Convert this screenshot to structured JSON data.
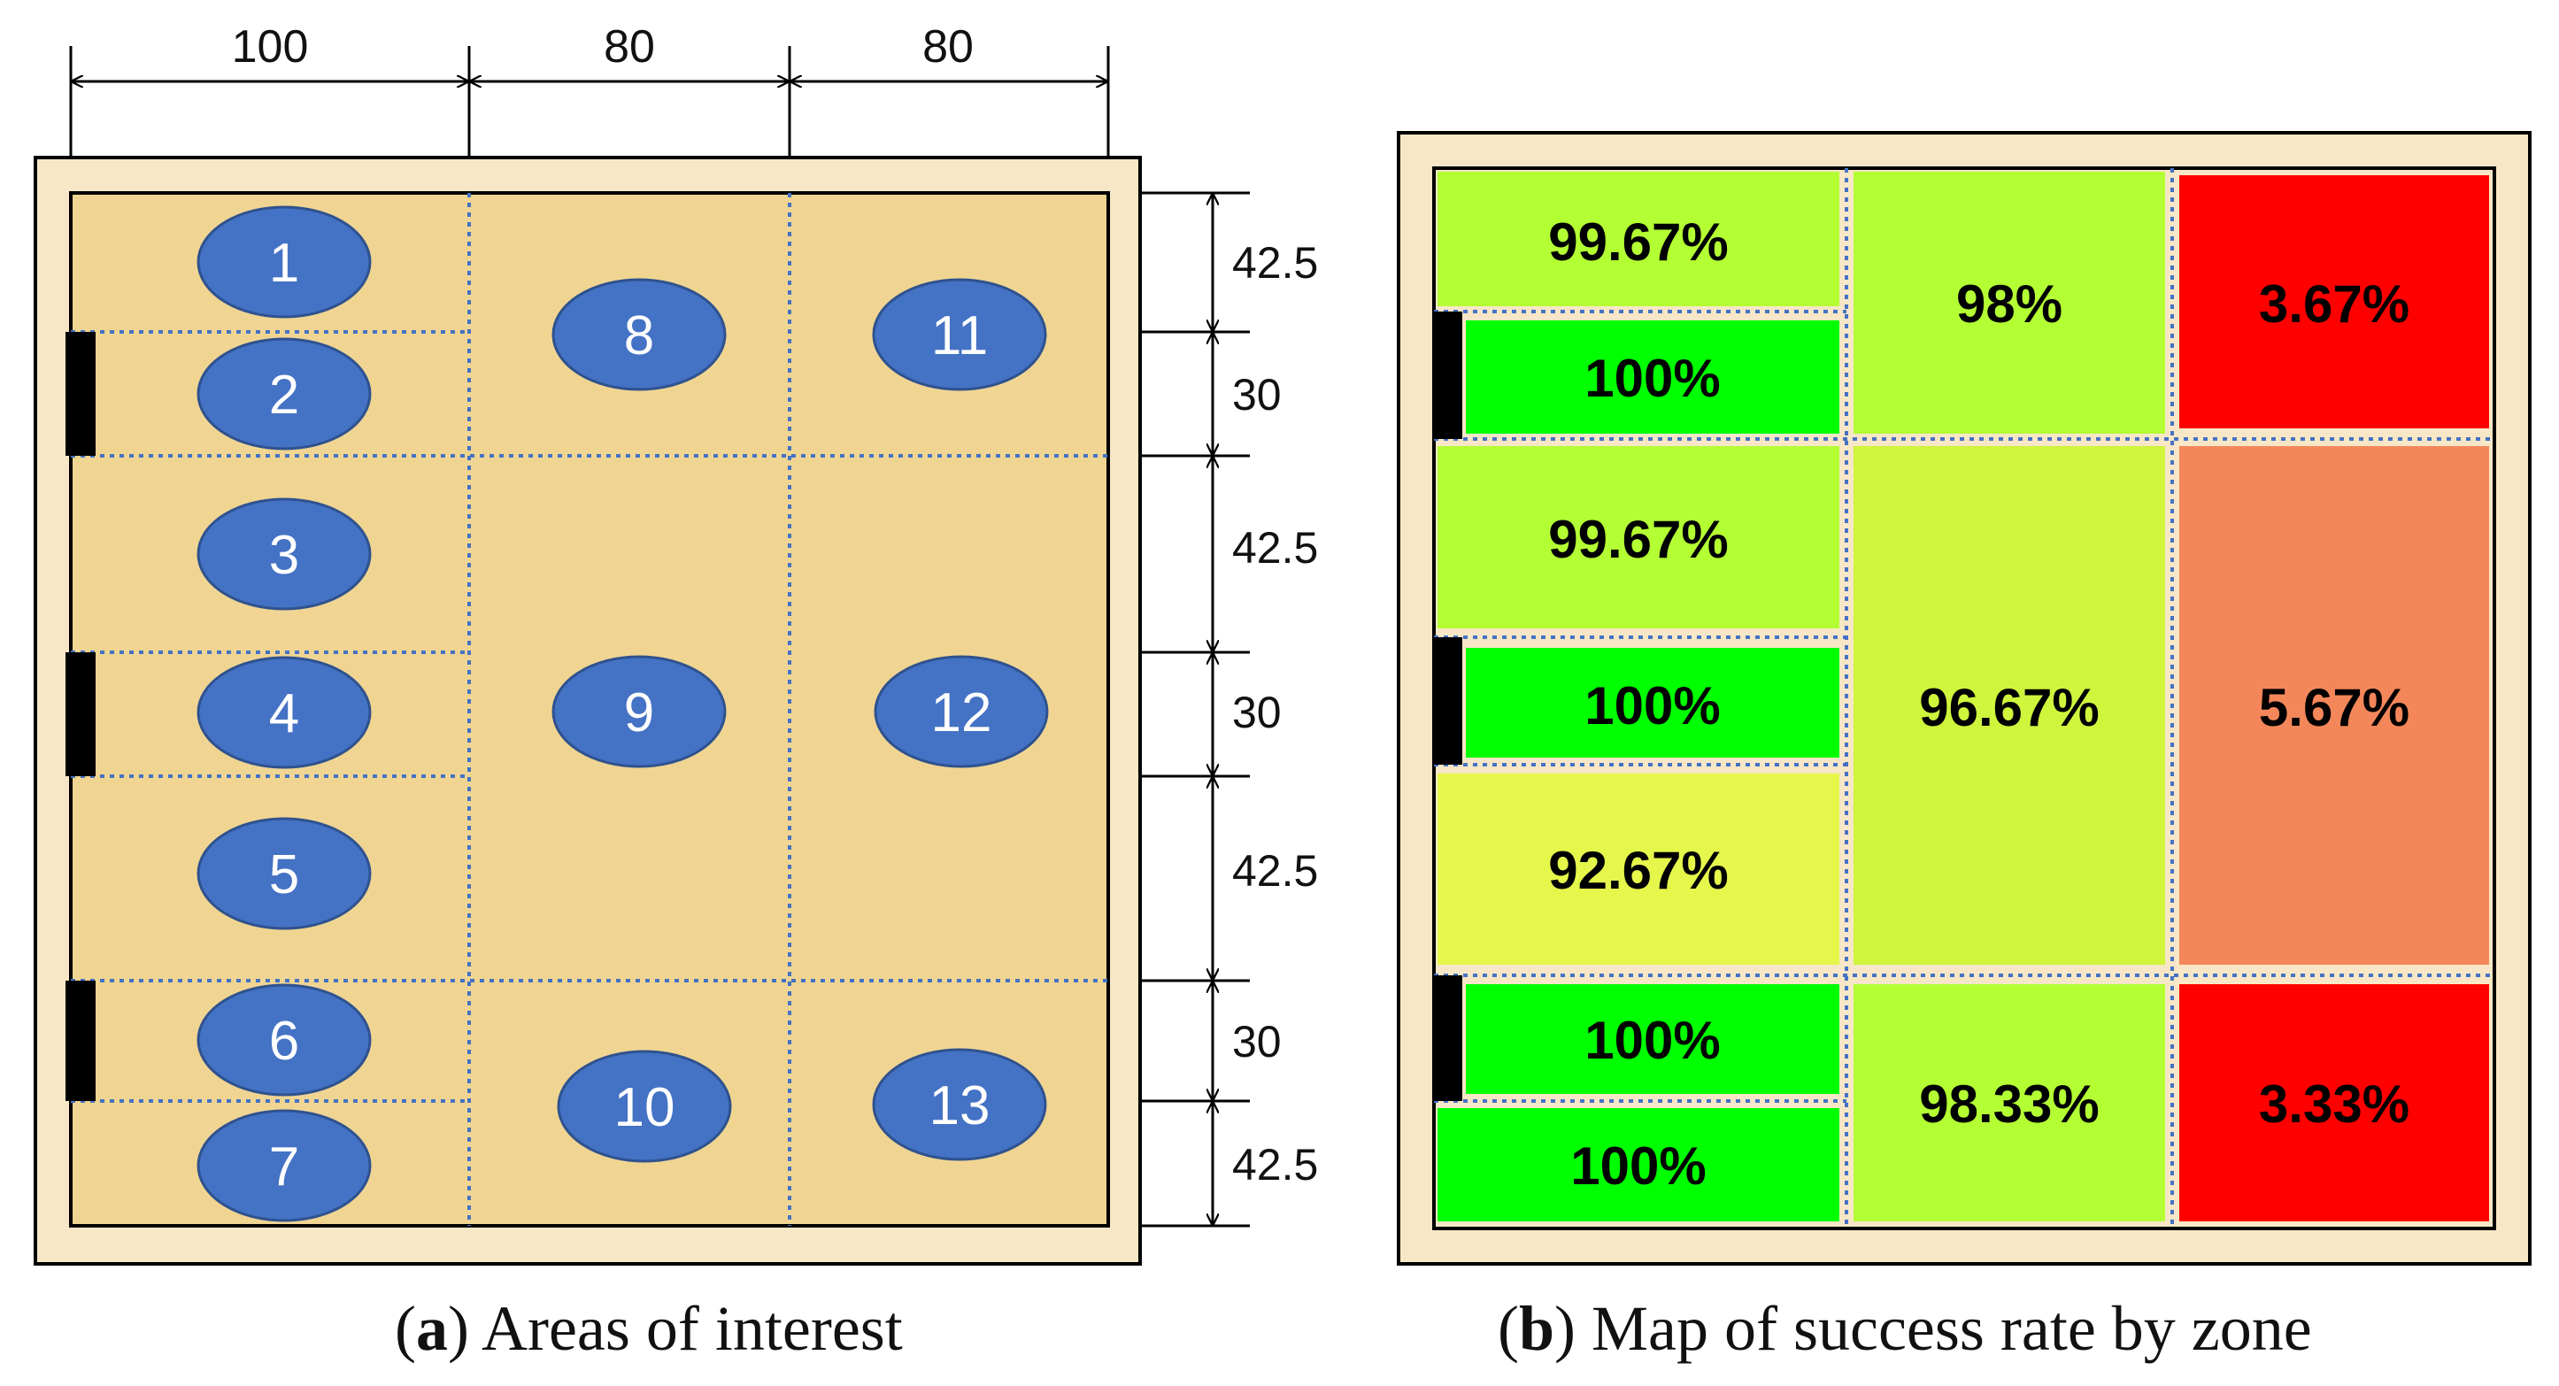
{
  "panel_a": {
    "caption_letter": "a",
    "caption_text": "Areas of interest",
    "col_dims": [
      "100",
      "80",
      "80"
    ],
    "row_dims": [
      "42.5",
      "30",
      "42.5",
      "30",
      "42.5",
      "30",
      "42.5"
    ],
    "areas": [
      "1",
      "2",
      "3",
      "4",
      "5",
      "6",
      "7",
      "8",
      "9",
      "10",
      "11",
      "12",
      "13"
    ],
    "colors": {
      "floor": "#f0d592",
      "frame": "#f7e7c6",
      "area": "#4472c4",
      "grid": "#4472c4"
    }
  },
  "panel_b": {
    "caption_letter": "b",
    "caption_text": "Map of success rate by zone",
    "zones": [
      {
        "label": "99.67%",
        "color": "#b4ff34"
      },
      {
        "label": "100%",
        "color": "#00ff00"
      },
      {
        "label": "99.67%",
        "color": "#b4ff34"
      },
      {
        "label": "100%",
        "color": "#00ff00"
      },
      {
        "label": "92.67%",
        "color": "#e6f74c"
      },
      {
        "label": "100%",
        "color": "#00ff00"
      },
      {
        "label": "100%",
        "color": "#00ff00"
      },
      {
        "label": "98%",
        "color": "#b4ff34"
      },
      {
        "label": "96.67%",
        "color": "#cff53d"
      },
      {
        "label": "98.33%",
        "color": "#b4ff34"
      },
      {
        "label": "3.67%",
        "color": "#ff0000"
      },
      {
        "label": "5.67%",
        "color": "#f4875a"
      },
      {
        "label": "3.33%",
        "color": "#ff0000"
      }
    ]
  }
}
